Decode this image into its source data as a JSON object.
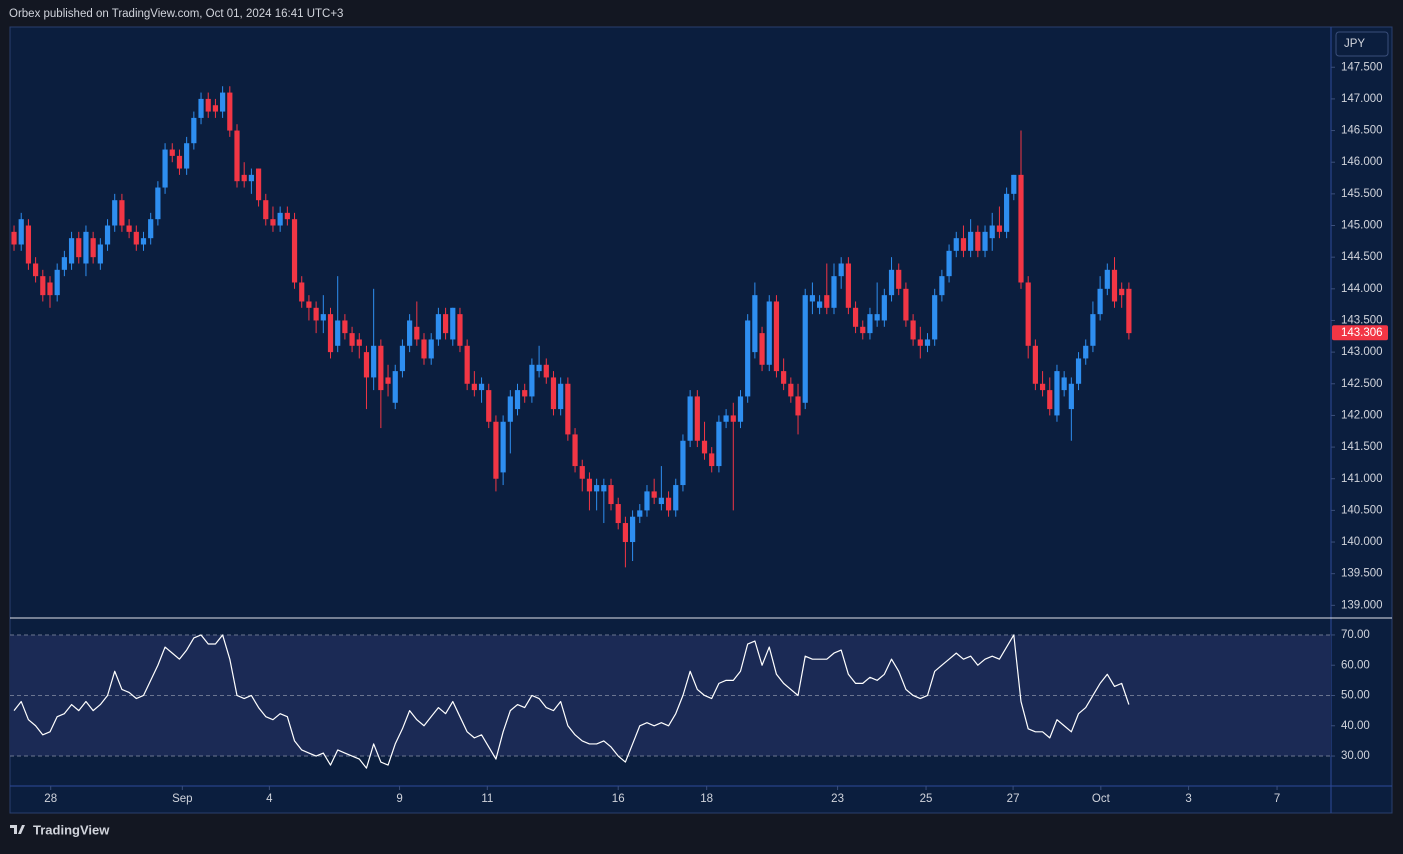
{
  "header": {
    "text": "Orbex published on TradingView.com, Oct 01, 2024 16:41 UTC+3"
  },
  "footer": {
    "brand": "TradingView"
  },
  "chart_data": [
    {
      "type": "candlestick",
      "currency": "JPY",
      "up_color": "#2e8ef0",
      "down_color": "#f23645",
      "last_price": 143.306,
      "last_price_color": "#f23645",
      "xlim": [
        -0.56,
        183.1
      ],
      "xticks": [
        {
          "value": 5.1,
          "label": "28"
        },
        {
          "value": 23.4,
          "label": "Sep"
        },
        {
          "value": 35.5,
          "label": "4"
        },
        {
          "value": 53.6,
          "label": "9"
        },
        {
          "value": 65.8,
          "label": "11"
        },
        {
          "value": 84.0,
          "label": "16"
        },
        {
          "value": 96.3,
          "label": "18"
        },
        {
          "value": 114.5,
          "label": "23"
        },
        {
          "value": 126.8,
          "label": "25"
        },
        {
          "value": 138.9,
          "label": "27"
        },
        {
          "value": 151.1,
          "label": "Oct"
        },
        {
          "value": 163.3,
          "label": "3"
        },
        {
          "value": 175.6,
          "label": "7"
        }
      ],
      "ylim": [
        138.8,
        148.12
      ],
      "yticks": [
        {
          "value": 139,
          "label": "139.000"
        },
        {
          "value": 139.5,
          "label": "139.500"
        },
        {
          "value": 140,
          "label": "140.000"
        },
        {
          "value": 140.5,
          "label": "140.500"
        },
        {
          "value": 141,
          "label": "141.000"
        },
        {
          "value": 141.5,
          "label": "141.500"
        },
        {
          "value": 142,
          "label": "142.000"
        },
        {
          "value": 142.5,
          "label": "142.500"
        },
        {
          "value": 143,
          "label": "143.000"
        },
        {
          "value": 143.5,
          "label": "143.500"
        },
        {
          "value": 144,
          "label": "144.000"
        },
        {
          "value": 144.5,
          "label": "144.500"
        },
        {
          "value": 145,
          "label": "145.000"
        },
        {
          "value": 145.5,
          "label": "145.500"
        },
        {
          "value": 146,
          "label": "146.000"
        },
        {
          "value": 146.5,
          "label": "146.500"
        },
        {
          "value": 147,
          "label": "147.000"
        },
        {
          "value": 147.5,
          "label": "147.500"
        }
      ],
      "ohlc": [
        [
          144.9,
          145.0,
          144.6,
          144.7
        ],
        [
          144.7,
          145.2,
          144.6,
          145.1
        ],
        [
          145.0,
          145.1,
          144.3,
          144.4
        ],
        [
          144.4,
          144.5,
          144.1,
          144.2
        ],
        [
          144.2,
          144.3,
          143.8,
          143.9
        ],
        [
          144.1,
          144.2,
          143.7,
          143.9
        ],
        [
          143.9,
          144.4,
          143.8,
          144.3
        ],
        [
          144.3,
          144.6,
          144.2,
          144.5
        ],
        [
          144.4,
          144.9,
          144.3,
          144.8
        ],
        [
          144.8,
          144.9,
          144.4,
          144.5
        ],
        [
          144.4,
          145.0,
          144.2,
          144.9
        ],
        [
          144.8,
          144.9,
          144.4,
          144.5
        ],
        [
          144.4,
          144.8,
          144.3,
          144.7
        ],
        [
          144.7,
          145.1,
          144.6,
          145.0
        ],
        [
          145.0,
          145.5,
          144.9,
          145.4
        ],
        [
          145.4,
          145.5,
          144.9,
          145.0
        ],
        [
          145.0,
          145.1,
          144.8,
          144.9
        ],
        [
          144.9,
          145.0,
          144.6,
          144.7
        ],
        [
          144.7,
          144.9,
          144.6,
          144.8
        ],
        [
          144.8,
          145.2,
          144.7,
          145.1
        ],
        [
          145.1,
          145.7,
          145.0,
          145.6
        ],
        [
          145.6,
          146.3,
          145.5,
          146.2
        ],
        [
          146.2,
          146.3,
          146.0,
          146.1
        ],
        [
          146.1,
          146.2,
          145.8,
          145.9
        ],
        [
          145.9,
          146.4,
          145.8,
          146.3
        ],
        [
          146.3,
          146.8,
          146.2,
          146.7
        ],
        [
          146.7,
          147.1,
          146.6,
          147.0
        ],
        [
          147.0,
          147.1,
          146.7,
          146.8
        ],
        [
          146.9,
          147.0,
          146.7,
          146.8
        ],
        [
          146.8,
          147.2,
          146.7,
          147.1
        ],
        [
          147.1,
          147.2,
          146.4,
          146.5
        ],
        [
          146.5,
          146.6,
          145.6,
          145.7
        ],
        [
          145.8,
          146.0,
          145.6,
          145.7
        ],
        [
          145.7,
          145.9,
          145.5,
          145.8
        ],
        [
          145.9,
          145.9,
          145.3,
          145.4
        ],
        [
          145.4,
          145.5,
          145.0,
          145.1
        ],
        [
          145.1,
          145.3,
          144.9,
          145.0
        ],
        [
          145.0,
          145.3,
          144.9,
          145.2
        ],
        [
          145.2,
          145.3,
          145.0,
          145.1
        ],
        [
          145.1,
          145.2,
          144.0,
          144.1
        ],
        [
          144.1,
          144.2,
          143.7,
          143.8
        ],
        [
          143.8,
          143.9,
          143.5,
          143.7
        ],
        [
          143.7,
          143.8,
          143.3,
          143.5
        ],
        [
          143.5,
          143.9,
          143.3,
          143.6
        ],
        [
          143.6,
          143.7,
          142.9,
          143.0
        ],
        [
          143.1,
          144.2,
          143.0,
          143.5
        ],
        [
          143.5,
          143.6,
          143.2,
          143.3
        ],
        [
          143.3,
          143.4,
          143.0,
          143.1
        ],
        [
          143.2,
          143.3,
          142.9,
          143.1
        ],
        [
          143.0,
          143.1,
          142.1,
          142.6
        ],
        [
          142.6,
          144.0,
          142.4,
          143.1
        ],
        [
          143.1,
          143.2,
          141.8,
          142.4
        ],
        [
          142.6,
          142.8,
          142.3,
          142.5
        ],
        [
          142.2,
          142.8,
          142.1,
          142.7
        ],
        [
          142.7,
          143.2,
          142.6,
          143.1
        ],
        [
          143.1,
          143.6,
          143.0,
          143.5
        ],
        [
          143.4,
          143.8,
          143.1,
          143.2
        ],
        [
          143.2,
          143.3,
          142.8,
          142.9
        ],
        [
          142.9,
          143.3,
          142.8,
          143.2
        ],
        [
          143.2,
          143.7,
          143.1,
          143.6
        ],
        [
          143.6,
          143.7,
          143.2,
          143.3
        ],
        [
          143.2,
          143.7,
          143.1,
          143.7
        ],
        [
          143.6,
          143.7,
          143.0,
          143.1
        ],
        [
          143.1,
          143.2,
          142.4,
          142.5
        ],
        [
          142.5,
          142.7,
          142.3,
          142.4
        ],
        [
          142.4,
          142.6,
          142.2,
          142.5
        ],
        [
          142.4,
          142.5,
          141.8,
          141.9
        ],
        [
          141.9,
          142.0,
          140.8,
          141.0
        ],
        [
          141.1,
          142.0,
          140.9,
          141.9
        ],
        [
          141.9,
          142.4,
          141.4,
          142.3
        ],
        [
          142.1,
          142.5,
          142.0,
          142.4
        ],
        [
          142.4,
          142.5,
          142.2,
          142.3
        ],
        [
          142.3,
          142.9,
          142.2,
          142.8
        ],
        [
          142.7,
          143.1,
          142.6,
          142.8
        ],
        [
          142.8,
          142.9,
          142.5,
          142.6
        ],
        [
          142.6,
          142.7,
          142.0,
          142.1
        ],
        [
          142.1,
          142.6,
          142.0,
          142.5
        ],
        [
          142.5,
          142.6,
          141.6,
          141.7
        ],
        [
          141.7,
          141.8,
          141.1,
          141.2
        ],
        [
          141.2,
          141.3,
          140.8,
          141.0
        ],
        [
          141.0,
          141.1,
          140.5,
          140.8
        ],
        [
          140.8,
          141.0,
          140.5,
          140.9
        ],
        [
          140.8,
          141.0,
          140.3,
          140.9
        ],
        [
          140.9,
          141.0,
          140.5,
          140.6
        ],
        [
          140.6,
          140.7,
          140.2,
          140.3
        ],
        [
          140.3,
          140.4,
          139.6,
          140.0
        ],
        [
          140.0,
          140.5,
          139.7,
          140.4
        ],
        [
          140.4,
          140.6,
          140.3,
          140.5
        ],
        [
          140.5,
          140.9,
          140.4,
          140.8
        ],
        [
          140.8,
          141.0,
          140.6,
          140.7
        ],
        [
          140.6,
          141.2,
          140.5,
          140.7
        ],
        [
          140.7,
          140.8,
          140.4,
          140.5
        ],
        [
          140.5,
          141.0,
          140.4,
          140.9
        ],
        [
          140.9,
          141.7,
          140.8,
          141.6
        ],
        [
          141.6,
          142.4,
          141.5,
          142.3
        ],
        [
          142.3,
          142.4,
          141.5,
          141.6
        ],
        [
          141.6,
          141.9,
          141.3,
          141.4
        ],
        [
          141.4,
          141.5,
          141.1,
          141.2
        ],
        [
          141.2,
          142.0,
          141.1,
          141.9
        ],
        [
          141.9,
          142.1,
          141.8,
          142.0
        ],
        [
          142.0,
          142.2,
          140.5,
          141.9
        ],
        [
          141.9,
          142.4,
          141.8,
          142.3
        ],
        [
          142.3,
          143.6,
          142.2,
          143.5
        ],
        [
          143.0,
          144.1,
          142.9,
          143.9
        ],
        [
          143.3,
          143.4,
          142.7,
          142.8
        ],
        [
          142.8,
          143.9,
          142.7,
          143.8
        ],
        [
          143.8,
          143.9,
          142.6,
          142.7
        ],
        [
          142.7,
          142.9,
          142.4,
          142.5
        ],
        [
          142.5,
          142.6,
          142.2,
          142.3
        ],
        [
          142.3,
          142.5,
          141.7,
          142.0
        ],
        [
          142.2,
          144.0,
          142.1,
          143.9
        ],
        [
          143.8,
          144.1,
          143.6,
          143.9
        ],
        [
          143.7,
          143.9,
          143.6,
          143.8
        ],
        [
          143.9,
          144.4,
          143.6,
          143.7
        ],
        [
          143.7,
          144.4,
          143.6,
          144.2
        ],
        [
          144.2,
          144.5,
          144.0,
          144.4
        ],
        [
          144.4,
          144.5,
          143.6,
          143.7
        ],
        [
          143.7,
          143.8,
          143.3,
          143.4
        ],
        [
          143.4,
          143.5,
          143.2,
          143.3
        ],
        [
          143.3,
          143.7,
          143.2,
          143.6
        ],
        [
          143.5,
          144.1,
          143.4,
          143.6
        ],
        [
          143.5,
          144.0,
          143.4,
          143.9
        ],
        [
          143.9,
          144.5,
          143.8,
          144.3
        ],
        [
          144.3,
          144.4,
          143.9,
          144.0
        ],
        [
          144.0,
          144.1,
          143.4,
          143.5
        ],
        [
          143.5,
          143.6,
          143.1,
          143.2
        ],
        [
          143.2,
          143.4,
          142.9,
          143.1
        ],
        [
          143.1,
          143.3,
          143.0,
          143.2
        ],
        [
          143.2,
          144.0,
          143.1,
          143.9
        ],
        [
          143.9,
          144.3,
          143.8,
          144.2
        ],
        [
          144.2,
          144.7,
          144.1,
          144.6
        ],
        [
          144.6,
          144.9,
          144.5,
          144.8
        ],
        [
          144.8,
          145.0,
          144.5,
          144.6
        ],
        [
          144.6,
          145.1,
          144.5,
          144.9
        ],
        [
          144.9,
          145.0,
          144.5,
          144.6
        ],
        [
          144.6,
          145.0,
          144.5,
          144.9
        ],
        [
          144.8,
          145.2,
          144.6,
          145.0
        ],
        [
          145.0,
          145.3,
          144.8,
          144.9
        ],
        [
          144.9,
          145.6,
          144.8,
          145.5
        ],
        [
          145.5,
          145.8,
          145.4,
          145.8
        ],
        [
          145.8,
          146.5,
          144.0,
          144.1
        ],
        [
          144.1,
          144.2,
          142.9,
          143.1
        ],
        [
          143.1,
          143.2,
          142.4,
          142.5
        ],
        [
          142.5,
          142.7,
          142.3,
          142.4
        ],
        [
          142.4,
          142.6,
          142.0,
          142.1
        ],
        [
          142.0,
          142.8,
          141.9,
          142.7
        ],
        [
          142.4,
          142.7,
          142.3,
          142.6
        ],
        [
          142.1,
          142.6,
          141.6,
          142.5
        ],
        [
          142.5,
          143.0,
          142.4,
          142.9
        ],
        [
          142.9,
          143.2,
          142.8,
          143.1
        ],
        [
          143.1,
          143.8,
          143.0,
          143.6
        ],
        [
          143.6,
          144.2,
          143.5,
          144.0
        ],
        [
          144.0,
          144.4,
          143.9,
          144.3
        ],
        [
          144.3,
          144.5,
          143.7,
          143.8
        ],
        [
          144.0,
          144.1,
          143.7,
          143.9
        ],
        [
          144.0,
          144.1,
          143.2,
          143.3
        ]
      ]
    },
    {
      "type": "line",
      "color": "#ffffff",
      "xlim": [
        -0.56,
        183.1
      ],
      "ylim": [
        20.1,
        75.6
      ],
      "yticks": [
        {
          "value": 30,
          "label": "30.00"
        },
        {
          "value": 40,
          "label": "40.00"
        },
        {
          "value": 50,
          "label": "50.00"
        },
        {
          "value": 60,
          "label": "60.00"
        },
        {
          "value": 70,
          "label": "70.00"
        }
      ],
      "levels": [
        30,
        50,
        70
      ],
      "values": [
        45,
        48,
        42,
        40,
        37,
        38,
        43,
        44,
        47,
        45,
        48,
        45,
        47,
        50,
        58,
        52,
        51,
        49,
        50,
        55,
        60,
        66,
        64,
        62,
        65,
        69,
        70,
        67,
        67,
        70,
        62,
        50,
        49,
        50,
        46,
        43,
        42,
        44,
        43,
        35,
        32,
        31,
        30,
        31,
        27,
        32,
        31,
        30,
        29,
        26,
        34,
        28,
        27,
        34,
        39,
        45,
        42,
        40,
        43,
        46,
        44,
        48,
        43,
        38,
        36,
        37,
        33,
        29,
        38,
        45,
        47,
        46,
        50,
        49,
        46,
        45,
        48,
        40,
        37,
        35,
        34,
        34,
        35,
        33,
        30,
        28,
        34,
        40,
        41,
        40,
        41,
        40,
        44,
        50,
        58,
        52,
        50,
        49,
        54,
        55,
        55,
        58,
        67,
        68,
        60,
        66,
        57,
        54,
        52,
        50,
        63,
        62,
        62,
        62,
        64,
        65,
        57,
        54,
        54,
        56,
        55,
        57,
        62,
        58,
        52,
        50,
        49,
        50,
        58,
        60,
        62,
        64,
        62,
        63,
        60,
        62,
        63,
        62,
        66,
        70,
        48,
        39,
        38,
        38,
        36,
        42,
        40,
        38,
        44,
        46,
        50,
        54,
        57,
        53,
        54,
        47
      ]
    }
  ]
}
